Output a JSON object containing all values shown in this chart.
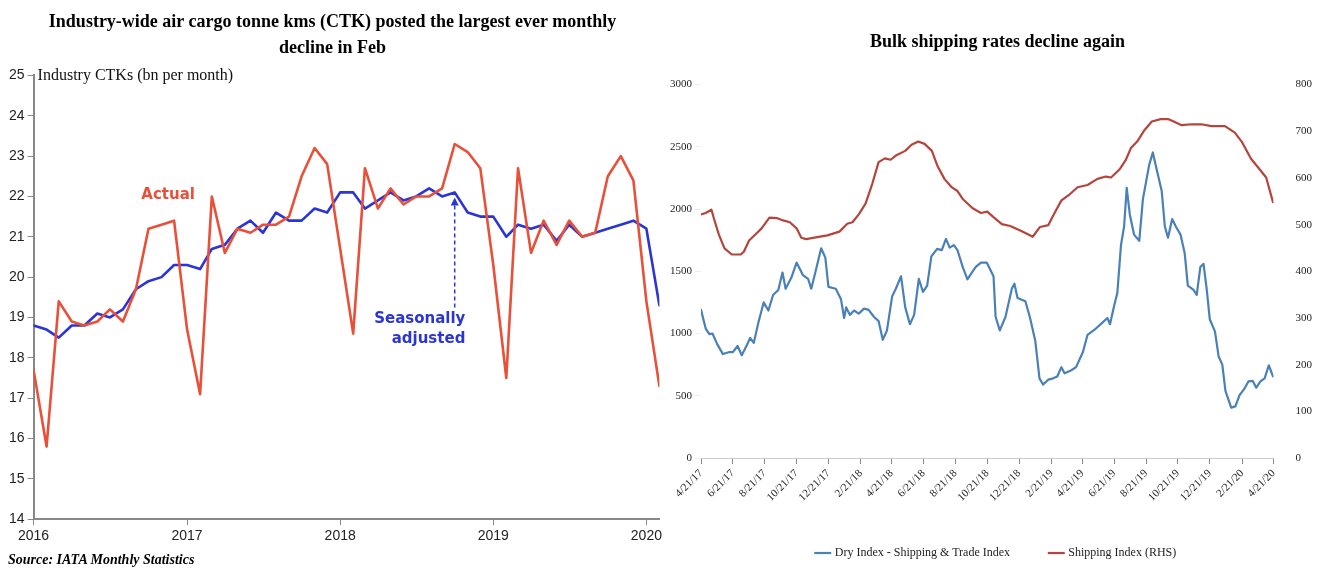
{
  "chart_data": [
    {
      "type": "line",
      "title": "Industry-wide air cargo tonne kms (CTK) posted the largest ever monthly decline in Feb",
      "ylabel": "Industry CTKs (bn per month)",
      "x": [
        "2016-01",
        "2016-02",
        "2016-03",
        "2016-04",
        "2016-05",
        "2016-06",
        "2016-07",
        "2016-08",
        "2016-09",
        "2016-10",
        "2016-11",
        "2016-12",
        "2017-01",
        "2017-02",
        "2017-03",
        "2017-04",
        "2017-05",
        "2017-06",
        "2017-07",
        "2017-08",
        "2017-09",
        "2017-10",
        "2017-11",
        "2017-12",
        "2018-01",
        "2018-02",
        "2018-03",
        "2018-04",
        "2018-05",
        "2018-06",
        "2018-07",
        "2018-08",
        "2018-09",
        "2018-10",
        "2018-11",
        "2018-12",
        "2019-01",
        "2019-02",
        "2019-03",
        "2019-04",
        "2019-05",
        "2019-06",
        "2019-07",
        "2019-08",
        "2019-09",
        "2019-10",
        "2019-11",
        "2019-12",
        "2020-01",
        "2020-02"
      ],
      "series": [
        {
          "name": "Actual",
          "color": "#e8503a",
          "values": [
            17.7,
            15.8,
            19.4,
            18.9,
            18.8,
            18.9,
            19.2,
            18.9,
            19.7,
            21.2,
            21.3,
            21.4,
            18.7,
            17.1,
            22.0,
            20.6,
            21.2,
            21.1,
            21.3,
            21.3,
            21.5,
            22.5,
            23.2,
            22.8,
            20.7,
            18.6,
            22.7,
            21.7,
            22.2,
            21.8,
            22.0,
            22.0,
            22.2,
            23.3,
            23.1,
            22.7,
            20.3,
            17.5,
            22.7,
            20.6,
            21.4,
            20.8,
            21.4,
            21.0,
            21.1,
            22.5,
            23.0,
            22.4,
            19.4,
            17.3
          ]
        },
        {
          "name": "Seasonally adjusted",
          "color": "#2b35d6",
          "values": [
            18.8,
            18.7,
            18.5,
            18.8,
            18.8,
            19.1,
            19.0,
            19.2,
            19.7,
            19.9,
            20.0,
            20.3,
            20.3,
            20.2,
            20.7,
            20.8,
            21.2,
            21.4,
            21.1,
            21.6,
            21.4,
            21.4,
            21.7,
            21.6,
            22.1,
            22.1,
            21.7,
            21.9,
            22.1,
            21.9,
            22.0,
            22.2,
            22.0,
            22.1,
            21.6,
            21.5,
            21.5,
            21.0,
            21.3,
            21.2,
            21.3,
            20.9,
            21.3,
            21.0,
            21.1,
            21.2,
            21.3,
            21.4,
            21.2,
            19.3
          ]
        }
      ],
      "xlim": [
        "2016-01",
        "2020-02"
      ],
      "xticks": [
        {
          "value": "2016-01",
          "label": "2016"
        },
        {
          "value": "2017-01",
          "label": "2017"
        },
        {
          "value": "2018-01",
          "label": "2018"
        },
        {
          "value": "2019-01",
          "label": "2019"
        },
        {
          "value": "2020-01",
          "label": "2020"
        }
      ],
      "ylim": [
        14,
        25
      ],
      "yticks": [
        14,
        15,
        16,
        17,
        18,
        19,
        20,
        21,
        22,
        23,
        24,
        25
      ],
      "legend": false,
      "marker": "none",
      "line_style": "solid",
      "annotations": [
        "Source: IATA Monthly Statistics"
      ]
    },
    {
      "type": "line",
      "title": "Bulk shipping rates decline again",
      "series": [
        {
          "name": "Dry Index - Shipping & Trade Index",
          "color": "#4a80b8",
          "x": [
            "2017-04-21",
            "2017-04-30",
            "2017-05-07",
            "2017-05-13",
            "2017-05-22",
            "2017-06-02",
            "2017-06-13",
            "2017-06-21",
            "2017-06-30",
            "2017-07-08",
            "2017-07-17",
            "2017-07-24",
            "2017-07-31",
            "2017-08-09",
            "2017-08-19",
            "2017-08-28",
            "2017-09-06",
            "2017-09-16",
            "2017-09-24",
            "2017-09-30",
            "2017-10-11",
            "2017-10-21",
            "2017-11-02",
            "2017-11-12",
            "2017-11-18",
            "2017-11-27",
            "2017-12-07",
            "2017-12-15",
            "2017-12-21",
            "2018-01-04",
            "2018-01-14",
            "2018-01-20",
            "2018-01-24",
            "2018-01-31",
            "2018-02-08",
            "2018-02-17",
            "2018-02-27",
            "2018-03-08",
            "2018-03-18",
            "2018-03-27",
            "2018-04-04",
            "2018-04-12",
            "2018-04-22",
            "2018-04-29",
            "2018-05-09",
            "2018-05-17",
            "2018-05-26",
            "2018-06-03",
            "2018-06-12",
            "2018-06-20",
            "2018-06-28",
            "2018-07-06",
            "2018-07-17",
            "2018-07-26",
            "2018-08-03",
            "2018-08-10",
            "2018-08-18",
            "2018-08-25",
            "2018-09-04",
            "2018-09-13",
            "2018-09-23",
            "2018-09-29",
            "2018-10-09",
            "2018-10-20",
            "2018-11-02",
            "2018-11-06",
            "2018-11-14",
            "2018-11-25",
            "2018-12-07",
            "2018-12-12",
            "2018-12-18",
            "2019-01-02",
            "2019-01-11",
            "2019-01-21",
            "2019-01-29",
            "2019-02-05",
            "2019-02-15",
            "2019-02-24",
            "2019-03-04",
            "2019-03-12",
            "2019-03-18",
            "2019-03-31",
            "2019-04-09",
            "2019-04-22",
            "2019-05-01",
            "2019-05-17",
            "2019-05-30",
            "2019-06-08",
            "2019-06-13",
            "2019-06-21",
            "2019-06-27",
            "2019-07-04",
            "2019-07-10",
            "2019-07-15",
            "2019-07-21",
            "2019-07-29",
            "2019-08-08",
            "2019-08-15",
            "2019-08-27",
            "2019-09-03",
            "2019-09-11",
            "2019-09-20",
            "2019-09-26",
            "2019-10-02",
            "2019-10-10",
            "2019-10-17",
            "2019-10-26",
            "2019-11-03",
            "2019-11-09",
            "2019-11-20",
            "2019-11-26",
            "2019-12-03",
            "2019-12-09",
            "2019-12-15",
            "2019-12-21",
            "2019-12-31",
            "2020-01-07",
            "2020-01-14",
            "2020-01-20",
            "2020-01-31",
            "2020-02-08",
            "2020-02-16",
            "2020-02-25",
            "2020-03-04",
            "2020-03-12",
            "2020-03-19",
            "2020-03-27",
            "2020-04-04",
            "2020-04-12",
            "2020-04-20"
          ],
          "values": [
            1190,
            1040,
            995,
            1000,
            915,
            835,
            850,
            850,
            900,
            825,
            900,
            965,
            925,
            1090,
            1250,
            1185,
            1310,
            1350,
            1490,
            1360,
            1450,
            1570,
            1470,
            1440,
            1360,
            1510,
            1685,
            1610,
            1375,
            1360,
            1275,
            1125,
            1210,
            1150,
            1185,
            1160,
            1200,
            1190,
            1135,
            1100,
            950,
            1025,
            1300,
            1360,
            1460,
            1210,
            1075,
            1150,
            1440,
            1335,
            1385,
            1620,
            1680,
            1670,
            1760,
            1690,
            1710,
            1670,
            1535,
            1435,
            1500,
            1535,
            1570,
            1570,
            1460,
            1135,
            1025,
            1135,
            1360,
            1400,
            1285,
            1260,
            1125,
            940,
            640,
            590,
            630,
            640,
            655,
            730,
            680,
            705,
            730,
            850,
            990,
            1040,
            1090,
            1125,
            1075,
            1225,
            1325,
            1710,
            1860,
            2170,
            1955,
            1795,
            1745,
            2080,
            2355,
            2455,
            2305,
            2145,
            1860,
            1770,
            1920,
            1860,
            1795,
            1645,
            1385,
            1350,
            1310,
            1535,
            1560,
            1360,
            1115,
            1015,
            815,
            750,
            540,
            405,
            415,
            505,
            555,
            615,
            620,
            565,
            615,
            640,
            745,
            655
          ]
        },
        {
          "name": "Shipping Index (RHS)",
          "color": "#b5453c",
          "axis": "y2",
          "x": [
            "2017-04-21",
            "2017-04-30",
            "2017-05-11",
            "2017-05-16",
            "2017-05-25",
            "2017-06-05",
            "2017-06-19",
            "2017-07-06",
            "2017-07-12",
            "2017-07-22",
            "2017-08-03",
            "2017-08-15",
            "2017-08-30",
            "2017-09-13",
            "2017-09-25",
            "2017-10-08",
            "2017-10-21",
            "2017-10-30",
            "2017-11-08",
            "2017-11-24",
            "2017-12-19",
            "2018-01-11",
            "2018-01-26",
            "2018-02-05",
            "2018-02-17",
            "2018-03-02",
            "2018-03-15",
            "2018-03-27",
            "2018-04-08",
            "2018-04-19",
            "2018-04-29",
            "2018-05-17",
            "2018-05-29",
            "2018-06-11",
            "2018-06-23",
            "2018-07-07",
            "2018-07-18",
            "2018-07-31",
            "2018-08-13",
            "2018-08-25",
            "2018-09-04",
            "2018-09-23",
            "2018-10-09",
            "2018-10-21",
            "2018-11-03",
            "2018-11-18",
            "2018-12-04",
            "2018-12-20",
            "2019-01-02",
            "2019-01-16",
            "2019-01-30",
            "2019-02-15",
            "2019-02-24",
            "2019-03-12",
            "2019-03-28",
            "2019-04-12",
            "2019-05-01",
            "2019-05-20",
            "2019-06-05",
            "2019-06-15",
            "2019-07-01",
            "2019-07-13",
            "2019-07-23",
            "2019-08-04",
            "2019-08-17",
            "2019-09-01",
            "2019-09-18",
            "2019-10-03",
            "2019-10-13",
            "2019-10-28",
            "2019-11-16",
            "2019-12-05",
            "2019-12-24",
            "2020-01-19",
            "2020-02-07",
            "2020-02-20",
            "2020-03-09",
            "2020-03-28",
            "2020-04-07",
            "2020-04-20"
          ],
          "values": [
            522,
            525,
            532,
            512,
            479,
            449,
            436,
            436,
            442,
            466,
            479,
            492,
            515,
            514,
            509,
            505,
            492,
            472,
            469,
            472,
            477,
            485,
            502,
            505,
            522,
            545,
            588,
            634,
            642,
            639,
            648,
            658,
            671,
            678,
            673,
            658,
            625,
            598,
            581,
            572,
            555,
            535,
            525,
            528,
            515,
            501,
            497,
            489,
            482,
            474,
            495,
            499,
            519,
            552,
            565,
            580,
            585,
            598,
            603,
            601,
            618,
            638,
            664,
            678,
            701,
            721,
            726,
            726,
            721,
            713,
            715,
            715,
            711,
            711,
            697,
            678,
            641,
            615,
            601,
            548
          ]
        }
      ],
      "xlim": [
        "2017-04-21",
        "2020-04-21"
      ],
      "xticks": [
        {
          "value": "2017-04-21",
          "label": "4/21/17"
        },
        {
          "value": "2017-06-21",
          "label": "6/21/17"
        },
        {
          "value": "2017-08-21",
          "label": "8/21/17"
        },
        {
          "value": "2017-10-21",
          "label": "10/21/17"
        },
        {
          "value": "2017-12-21",
          "label": "12/21/17"
        },
        {
          "value": "2018-02-21",
          "label": "2/21/18"
        },
        {
          "value": "2018-04-21",
          "label": "4/21/18"
        },
        {
          "value": "2018-06-21",
          "label": "6/21/18"
        },
        {
          "value": "2018-08-21",
          "label": "8/21/18"
        },
        {
          "value": "2018-10-21",
          "label": "10/21/18"
        },
        {
          "value": "2018-12-21",
          "label": "12/21/18"
        },
        {
          "value": "2019-02-21",
          "label": "2/21/19"
        },
        {
          "value": "2019-04-21",
          "label": "4/21/19"
        },
        {
          "value": "2019-06-21",
          "label": "6/21/19"
        },
        {
          "value": "2019-08-21",
          "label": "8/21/19"
        },
        {
          "value": "2019-10-21",
          "label": "10/21/19"
        },
        {
          "value": "2019-12-21",
          "label": "12/21/19"
        },
        {
          "value": "2020-02-21",
          "label": "2/21/20"
        },
        {
          "value": "2020-04-21",
          "label": "4/21/20"
        }
      ],
      "ylim": [
        0,
        3000
      ],
      "yticks": [
        0,
        500,
        1000,
        1500,
        2000,
        2500,
        3000
      ],
      "y2lim": [
        0,
        800
      ],
      "y2ticks": [
        0,
        100,
        200,
        300,
        400,
        500,
        600,
        700,
        800
      ],
      "legend": "bottom",
      "marker": "none",
      "line_style": "solid"
    }
  ]
}
